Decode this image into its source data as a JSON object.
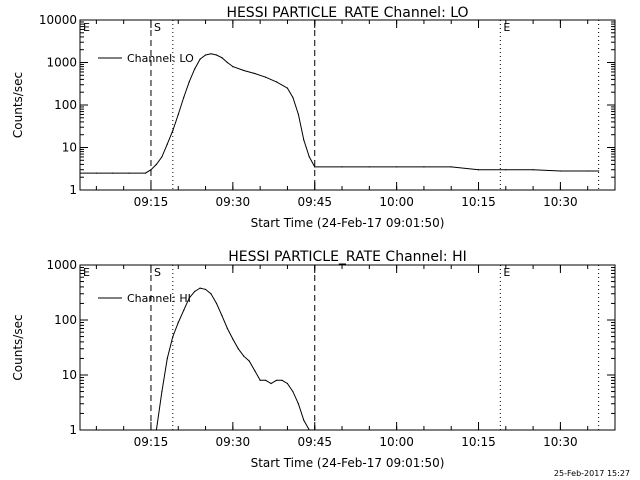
{
  "chart_data": [
    {
      "type": "line",
      "title": "HESSI PARTICLE_RATE Channel: LO",
      "xlabel": "Start Time (24-Feb-17 09:01:50)",
      "ylabel": "Counts/sec",
      "yscale": "log",
      "ylim": [
        1,
        10000
      ],
      "yticks": [
        "1",
        "10",
        "100",
        "1000",
        "10000"
      ],
      "xlim": [
        "09:02",
        "10:40"
      ],
      "xticks": [
        "09:15",
        "09:30",
        "09:45",
        "10:00",
        "10:15",
        "10:30"
      ],
      "legend": {
        "placement": "top-left",
        "entries": [
          "Channel: LO"
        ]
      },
      "markers": [
        {
          "label": "E",
          "time": "09:02",
          "style": "dotted"
        },
        {
          "label": "S",
          "time": "09:15",
          "style": "dashed"
        },
        {
          "time": "09:19",
          "style": "dotted"
        },
        {
          "time": "09:45",
          "style": "dashed"
        },
        {
          "label": "E",
          "time": "10:19",
          "style": "dotted"
        },
        {
          "time": "10:37",
          "style": "dotted"
        }
      ],
      "series": [
        {
          "name": "Channel: LO",
          "points": [
            [
              "09:02",
              2.5
            ],
            [
              "09:05",
              2.5
            ],
            [
              "09:08",
              2.5
            ],
            [
              "09:11",
              2.5
            ],
            [
              "09:14",
              2.5
            ],
            [
              "09:15",
              3
            ],
            [
              "09:16",
              4
            ],
            [
              "09:17",
              6
            ],
            [
              "09:18",
              12
            ],
            [
              "09:19",
              25
            ],
            [
              "09:20",
              60
            ],
            [
              "09:21",
              150
            ],
            [
              "09:22",
              350
            ],
            [
              "09:23",
              700
            ],
            [
              "09:24",
              1200
            ],
            [
              "09:25",
              1500
            ],
            [
              "09:26",
              1600
            ],
            [
              "09:27",
              1500
            ],
            [
              "09:28",
              1300
            ],
            [
              "09:29",
              1000
            ],
            [
              "09:30",
              800
            ],
            [
              "09:32",
              650
            ],
            [
              "09:34",
              550
            ],
            [
              "09:36",
              450
            ],
            [
              "09:38",
              350
            ],
            [
              "09:40",
              250
            ],
            [
              "09:41",
              150
            ],
            [
              "09:42",
              60
            ],
            [
              "09:43",
              15
            ],
            [
              "09:44",
              6
            ],
            [
              "09:45",
              3.5
            ],
            [
              "09:50",
              3.5
            ],
            [
              "09:55",
              3.5
            ],
            [
              "10:00",
              3.5
            ],
            [
              "10:05",
              3.5
            ],
            [
              "10:10",
              3.5
            ],
            [
              "10:15",
              3
            ],
            [
              "10:20",
              3
            ],
            [
              "10:25",
              3
            ],
            [
              "10:30",
              2.8
            ],
            [
              "10:35",
              2.8
            ],
            [
              "10:37",
              2.8
            ]
          ]
        }
      ]
    },
    {
      "type": "line",
      "title": "HESSI PARTICLE_RATE Channel: HI",
      "xlabel": "Start Time (24-Feb-17 09:01:50)",
      "ylabel": "Counts/sec",
      "yscale": "log",
      "ylim": [
        1,
        1000
      ],
      "yticks": [
        "1",
        "10",
        "100",
        "1000"
      ],
      "xlim": [
        "09:02",
        "10:40"
      ],
      "xticks": [
        "09:15",
        "09:30",
        "09:45",
        "10:00",
        "10:15",
        "10:30"
      ],
      "legend": {
        "placement": "top-left",
        "entries": [
          "Channel: HI"
        ]
      },
      "markers": [
        {
          "label": "E",
          "time": "09:02",
          "style": "dotted"
        },
        {
          "label": "S",
          "time": "09:15",
          "style": "dashed"
        },
        {
          "time": "09:19",
          "style": "dotted"
        },
        {
          "time": "09:45",
          "style": "dashed"
        },
        {
          "label": "E",
          "time": "10:19",
          "style": "dotted"
        },
        {
          "time": "10:37",
          "style": "dotted"
        }
      ],
      "series": [
        {
          "name": "Channel: HI",
          "points": [
            [
              "09:16",
              1
            ],
            [
              "09:17",
              5
            ],
            [
              "09:18",
              20
            ],
            [
              "09:19",
              50
            ],
            [
              "09:20",
              90
            ],
            [
              "09:21",
              150
            ],
            [
              "09:22",
              250
            ],
            [
              "09:23",
              330
            ],
            [
              "09:24",
              380
            ],
            [
              "09:25",
              360
            ],
            [
              "09:26",
              300
            ],
            [
              "09:27",
              200
            ],
            [
              "09:28",
              120
            ],
            [
              "09:29",
              70
            ],
            [
              "09:30",
              45
            ],
            [
              "09:31",
              30
            ],
            [
              "09:32",
              22
            ],
            [
              "09:33",
              18
            ],
            [
              "09:34",
              12
            ],
            [
              "09:35",
              8
            ],
            [
              "09:36",
              8
            ],
            [
              "09:37",
              7
            ],
            [
              "09:38",
              8
            ],
            [
              "09:39",
              8
            ],
            [
              "09:40",
              7
            ],
            [
              "09:41",
              5
            ],
            [
              "09:42",
              3
            ],
            [
              "09:43",
              1.5
            ],
            [
              "09:44",
              1
            ]
          ]
        }
      ]
    }
  ],
  "footer": {
    "timestamp": "25-Feb-2017 15:27"
  }
}
